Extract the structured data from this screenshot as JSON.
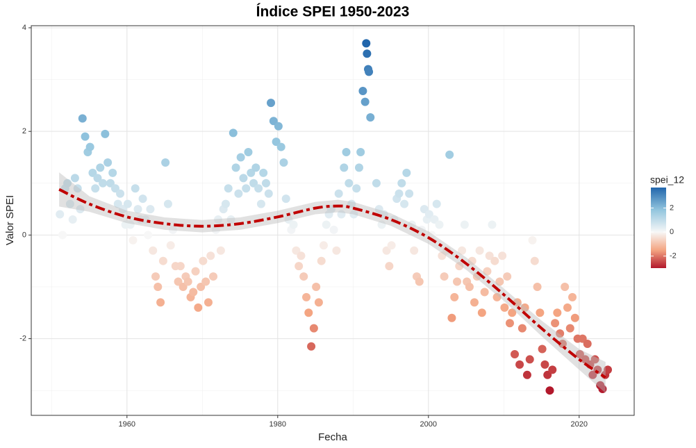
{
  "chart_data": {
    "type": "scatter",
    "title": "Índice SPEI 1950-2023",
    "x_label": "Fecha",
    "y_label": "Valor SPEI",
    "xlim": [
      1947.3,
      2027.3
    ],
    "ylim": [
      -3.48,
      4.04
    ],
    "xticks": [
      1960,
      1980,
      2000,
      2020
    ],
    "yticks": [
      -2,
      0,
      2,
      4
    ],
    "x_minor_grid": [
      1950,
      1970,
      1990,
      2010
    ],
    "y_minor_grid": [
      -3,
      -1,
      1,
      3
    ],
    "grid": true,
    "legend_position": "right",
    "series": [
      {
        "name": "spei_12",
        "x": [
          1951.1,
          1951.45,
          1951.8,
          1952.1,
          1952.45,
          1952.8,
          1953.1,
          1953.45,
          1953.8,
          1954.1,
          1954.45,
          1954.8,
          1955.1,
          1955.45,
          1955.8,
          1956.1,
          1956.45,
          1956.8,
          1957.1,
          1957.45,
          1957.8,
          1958.1,
          1958.45,
          1958.8,
          1959.1,
          1959.45,
          1959.8,
          1960.1,
          1960.45,
          1960.8,
          1961.1,
          1961.45,
          1961.8,
          1962.1,
          1962.45,
          1962.8,
          1963.1,
          1963.45,
          1963.8,
          1964.1,
          1964.45,
          1964.8,
          1965.1,
          1965.45,
          1965.8,
          1966.1,
          1966.45,
          1966.8,
          1967.1,
          1967.45,
          1967.8,
          1968.1,
          1968.45,
          1968.8,
          1969.1,
          1969.45,
          1969.8,
          1970.1,
          1970.45,
          1970.8,
          1971.1,
          1971.45,
          1971.8,
          1972.1,
          1972.45,
          1972.8,
          1973.1,
          1973.45,
          1973.8,
          1974.1,
          1974.45,
          1974.8,
          1975.1,
          1975.45,
          1975.8,
          1976.1,
          1976.45,
          1976.8,
          1977.1,
          1977.45,
          1977.8,
          1978.1,
          1978.45,
          1978.8,
          1979.1,
          1979.45,
          1979.8,
          1980.1,
          1980.45,
          1980.8,
          1981.1,
          1981.45,
          1981.8,
          1982.1,
          1982.45,
          1982.8,
          1983.1,
          1983.45,
          1983.8,
          1984.1,
          1984.45,
          1984.8,
          1985.1,
          1985.45,
          1985.8,
          1986.1,
          1986.45,
          1986.8,
          1987.1,
          1987.45,
          1987.8,
          1988.1,
          1988.45,
          1988.8,
          1989.1,
          1989.45,
          1989.8,
          1990.1,
          1990.45,
          1990.8,
          1991.0,
          1991.3,
          1991.6,
          1991.75,
          1991.85,
          1992.0,
          1992.1,
          1992.3,
          1993.1,
          1993.45,
          1993.8,
          1994.1,
          1994.45,
          1994.8,
          1995.1,
          1995.45,
          1995.8,
          1996.1,
          1996.45,
          1996.8,
          1997.1,
          1997.45,
          1997.8,
          1998.1,
          1998.45,
          1998.8,
          1999.1,
          1999.45,
          1999.8,
          2000.1,
          2000.45,
          2000.8,
          2001.1,
          2001.45,
          2001.8,
          2002.1,
          2002.45,
          2002.8,
          2003.1,
          2003.45,
          2003.8,
          2004.1,
          2004.45,
          2004.8,
          2005.1,
          2005.45,
          2005.8,
          2006.1,
          2006.45,
          2006.8,
          2007.1,
          2007.45,
          2007.8,
          2008.1,
          2008.45,
          2008.8,
          2009.1,
          2009.45,
          2009.8,
          2010.1,
          2010.45,
          2010.8,
          2011.1,
          2011.45,
          2011.8,
          2012.1,
          2012.45,
          2012.8,
          2013.1,
          2013.45,
          2013.8,
          2014.1,
          2014.45,
          2014.8,
          2015.1,
          2015.45,
          2015.8,
          2016.1,
          2016.45,
          2016.8,
          2017.1,
          2017.45,
          2017.8,
          2018.1,
          2018.45,
          2018.8,
          2019.1,
          2019.45,
          2019.8,
          2020.1,
          2020.45,
          2020.8,
          2021.1,
          2021.45,
          2021.8,
          2022.1,
          2022.45,
          2022.8,
          2023.1,
          2023.45,
          2023.8
        ],
        "values": [
          0.4,
          0.0,
          0.9,
          1.0,
          0.6,
          0.3,
          1.1,
          0.9,
          0.5,
          2.25,
          1.9,
          1.6,
          1.7,
          1.2,
          0.9,
          1.1,
          1.3,
          1.0,
          1.95,
          1.4,
          1.0,
          1.2,
          0.9,
          0.6,
          0.8,
          0.5,
          0.2,
          0.6,
          0.2,
          -0.1,
          0.9,
          0.5,
          0.3,
          0.7,
          0.3,
          0.0,
          0.5,
          -0.3,
          -0.8,
          -1.0,
          -1.3,
          -0.5,
          1.4,
          0.6,
          -0.2,
          0.1,
          -0.6,
          -0.9,
          -0.6,
          -1.0,
          -0.8,
          -0.9,
          -1.2,
          -1.1,
          -0.7,
          -1.4,
          -1.0,
          -0.5,
          -0.9,
          -1.3,
          -0.4,
          -0.8,
          0.1,
          0.3,
          -0.3,
          0.5,
          0.6,
          0.9,
          0.3,
          1.97,
          1.3,
          0.8,
          1.5,
          1.1,
          0.9,
          1.6,
          1.2,
          1.0,
          1.3,
          0.9,
          0.6,
          1.2,
          1.0,
          0.8,
          2.55,
          2.2,
          1.8,
          2.1,
          1.7,
          1.4,
          0.7,
          0.3,
          0.1,
          0.2,
          -0.3,
          -0.6,
          -0.4,
          -0.8,
          -1.2,
          -1.5,
          -2.15,
          -1.8,
          -1.0,
          -1.3,
          -0.5,
          -0.2,
          0.2,
          0.4,
          0.5,
          0.1,
          -0.3,
          0.8,
          0.4,
          1.3,
          1.6,
          1.0,
          0.6,
          0.4,
          0.9,
          1.3,
          1.6,
          2.78,
          2.57,
          3.7,
          3.5,
          3.2,
          3.15,
          2.27,
          1.0,
          0.5,
          0.2,
          0.4,
          -0.3,
          -0.6,
          -0.2,
          0.3,
          0.7,
          0.8,
          1.0,
          0.6,
          1.2,
          0.8,
          0.2,
          -0.3,
          -0.8,
          -0.9,
          0.1,
          0.5,
          0.3,
          0.4,
          0.0,
          0.3,
          0.6,
          0.2,
          -0.4,
          -0.8,
          -0.3,
          1.55,
          -1.6,
          -1.2,
          -0.9,
          -0.6,
          -0.3,
          0.2,
          -0.9,
          -1.0,
          -0.5,
          -1.3,
          -0.8,
          -0.3,
          -1.5,
          -1.1,
          -0.7,
          -0.4,
          0.2,
          -0.5,
          -1.2,
          -0.9,
          -0.4,
          -1.4,
          -0.8,
          -1.7,
          -1.5,
          -2.3,
          -1.3,
          -2.5,
          -1.8,
          -1.4,
          -2.7,
          -2.4,
          -0.1,
          -0.5,
          -1.0,
          -1.5,
          -2.2,
          -2.5,
          -2.7,
          -3.0,
          -2.6,
          -1.7,
          -1.5,
          -1.9,
          -2.1,
          -1.0,
          -1.4,
          -1.8,
          -1.2,
          -1.6,
          -2.0,
          -2.3,
          -2.0,
          -2.4,
          -2.1,
          -2.5,
          -2.7,
          -2.4,
          -2.6,
          -2.9,
          -2.97,
          -2.7,
          -2.6
        ]
      }
    ],
    "smooth": {
      "color": "#c00000",
      "band_color": "#bdbdbd",
      "x": [
        1951,
        1955,
        1960,
        1965,
        1970,
        1975,
        1980,
        1985,
        1988,
        1990,
        1995,
        2000,
        2005,
        2010,
        2015,
        2020,
        2023.5
      ],
      "values": [
        0.88,
        0.6,
        0.35,
        0.22,
        0.17,
        0.22,
        0.35,
        0.52,
        0.56,
        0.52,
        0.3,
        -0.05,
        -0.55,
        -1.15,
        -1.8,
        -2.4,
        -2.75
      ],
      "lower": [
        0.55,
        0.45,
        0.23,
        0.1,
        0.05,
        0.1,
        0.23,
        0.4,
        0.44,
        0.4,
        0.18,
        -0.17,
        -0.67,
        -1.27,
        -1.95,
        -2.6,
        -3.05
      ],
      "upper": [
        1.21,
        0.75,
        0.47,
        0.34,
        0.29,
        0.34,
        0.47,
        0.64,
        0.68,
        0.64,
        0.42,
        0.07,
        -0.43,
        -1.03,
        -1.65,
        -2.2,
        -2.45
      ]
    },
    "color_scale": {
      "lim": [
        -3.0,
        3.7
      ],
      "ticks": [
        -2,
        0,
        2
      ],
      "stops": [
        -3.0,
        -1.5,
        0,
        1.85,
        3.7
      ],
      "colors": [
        "#b2182b",
        "#f4a582",
        "#f7f7f7",
        "#92c5de",
        "#2166ac"
      ]
    }
  }
}
